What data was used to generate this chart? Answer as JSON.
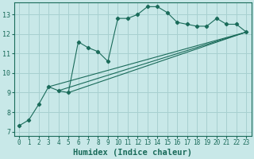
{
  "title": "",
  "xlabel": "Humidex (Indice chaleur)",
  "bg_color": "#c8e8e8",
  "grid_color": "#a8d0d0",
  "line_color": "#1a6b5a",
  "xlim": [
    -0.5,
    23.5
  ],
  "ylim": [
    6.8,
    13.6
  ],
  "yticks": [
    7,
    8,
    9,
    10,
    11,
    12,
    13
  ],
  "xticks": [
    0,
    1,
    2,
    3,
    4,
    5,
    6,
    7,
    8,
    9,
    10,
    11,
    12,
    13,
    14,
    15,
    16,
    17,
    18,
    19,
    20,
    21,
    22,
    23
  ],
  "series1_x": [
    0,
    1,
    2,
    3,
    4,
    5,
    6,
    7,
    8,
    9,
    10,
    11,
    12,
    13,
    14,
    15,
    16,
    17,
    18,
    19,
    20,
    21,
    22,
    23
  ],
  "series1_y": [
    7.3,
    7.6,
    8.4,
    9.3,
    9.1,
    9.0,
    11.6,
    11.3,
    11.1,
    10.6,
    12.8,
    12.8,
    13.0,
    13.4,
    13.4,
    13.1,
    12.6,
    12.5,
    12.4,
    12.4,
    12.8,
    12.5,
    12.5,
    12.1
  ],
  "line1_x": [
    4,
    23
  ],
  "line1_y": [
    9.1,
    12.1
  ],
  "line2_x": [
    5,
    23
  ],
  "line2_y": [
    9.0,
    12.1
  ],
  "line3_x": [
    3,
    23
  ],
  "line3_y": [
    9.3,
    12.1
  ],
  "font_color": "#1a6b5a",
  "tick_fontsize": 5.5,
  "label_fontsize": 7.5
}
